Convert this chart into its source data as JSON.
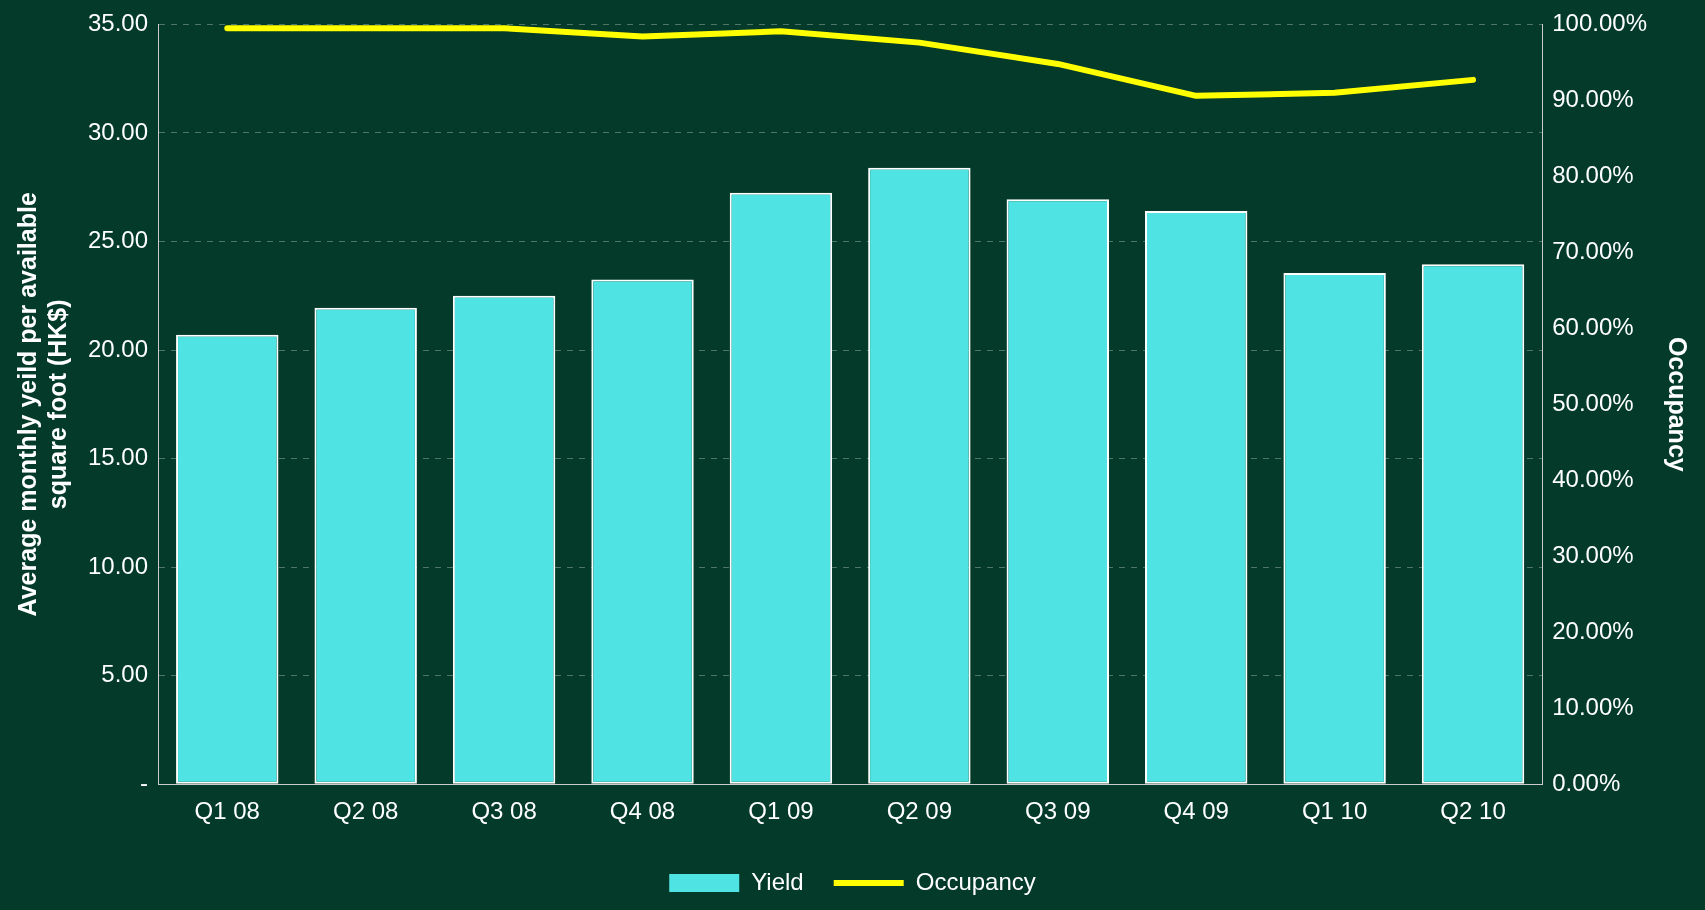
{
  "chart_data": {
    "type": "bar",
    "ylabel": "Average monthly yeild per available square foot (HK$)",
    "y2label": "Occupancy",
    "categories": [
      "Q1 08",
      "Q2 08",
      "Q3 08",
      "Q4 08",
      "Q1 09",
      "Q2 09",
      "Q3 09",
      "Q4 09",
      "Q1 10",
      "Q2 10"
    ],
    "series": [
      {
        "name": "Yield",
        "color": "#4fe3e3",
        "values": [
          20.7,
          21.95,
          22.5,
          23.25,
          27.25,
          28.4,
          26.95,
          26.4,
          23.55,
          23.95
        ]
      },
      {
        "name": "Occupancy",
        "type": "line",
        "axis": "y2",
        "color": "#ffff00",
        "values": [
          99.5,
          99.5,
          99.5,
          98.4,
          99.1,
          97.6,
          94.8,
          90.6,
          91.0,
          92.7
        ]
      }
    ],
    "ylim": [
      0,
      35
    ],
    "yticks": [
      {
        "value": 0,
        "label": "-"
      },
      {
        "value": 5,
        "label": "5.00"
      },
      {
        "value": 10,
        "label": "10.00"
      },
      {
        "value": 15,
        "label": "15.00"
      },
      {
        "value": 20,
        "label": "20.00"
      },
      {
        "value": 25,
        "label": "25.00"
      },
      {
        "value": 30,
        "label": "30.00"
      },
      {
        "value": 35,
        "label": "35.00"
      }
    ],
    "y2lim": [
      0,
      100
    ],
    "y2ticks": [
      {
        "value": 0,
        "label": "0.00%"
      },
      {
        "value": 10,
        "label": "10.00%"
      },
      {
        "value": 20,
        "label": "20.00%"
      },
      {
        "value": 30,
        "label": "30.00%"
      },
      {
        "value": 40,
        "label": "40.00%"
      },
      {
        "value": 50,
        "label": "50.00%"
      },
      {
        "value": 60,
        "label": "60.00%"
      },
      {
        "value": 70,
        "label": "70.00%"
      },
      {
        "value": 80,
        "label": "80.00%"
      },
      {
        "value": 90,
        "label": "90.00%"
      },
      {
        "value": 100,
        "label": "100.00%"
      }
    ],
    "grid": "y",
    "legend": "bottom",
    "marker": "none"
  }
}
